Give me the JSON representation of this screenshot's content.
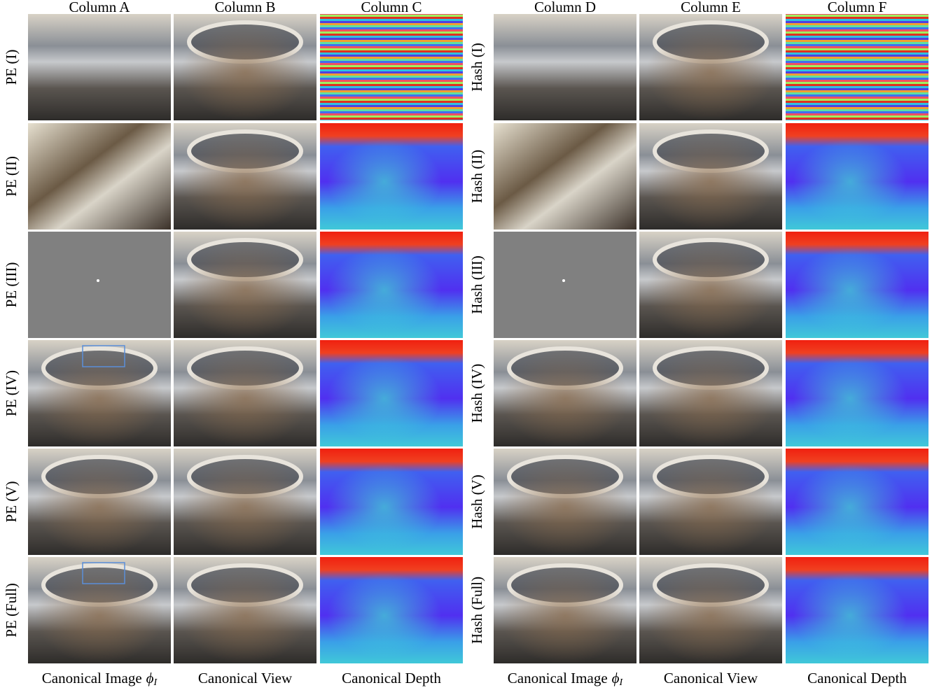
{
  "panels": [
    {
      "columns": [
        "Column A",
        "Column B",
        "Column C"
      ],
      "rows": [
        "PE (I)",
        "PE (II)",
        "PE (III)",
        "PE (IV)",
        "PE (V)",
        "PE (Full)"
      ],
      "footers": [
        {
          "text": "Canonical Image",
          "symbol": "ϕ",
          "sub": "I"
        },
        {
          "text": "Canonical View"
        },
        {
          "text": "Canonical Depth"
        }
      ]
    },
    {
      "columns": [
        "Column D",
        "Column E",
        "Column F"
      ],
      "rows": [
        "Hash (I)",
        "Hash (II)",
        "Hash (III)",
        "Hash (IV)",
        "Hash (V)",
        "Hash (Full)"
      ],
      "footers": [
        {
          "text": "Canonical Image",
          "symbol": "ϕ",
          "sub": "I"
        },
        {
          "text": "Canonical View"
        },
        {
          "text": "Canonical Depth"
        }
      ]
    }
  ]
}
